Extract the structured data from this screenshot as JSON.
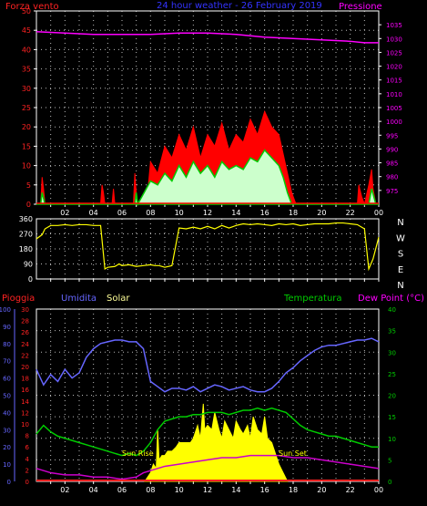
{
  "chart_data": [
    {
      "type": "line",
      "title": "24 hour weather - 26 February 2019",
      "left_axis_label": "Forza vento",
      "right_axis_label": "Pressione",
      "left_range": [
        0,
        50
      ],
      "left_ticks": [
        "0",
        "5",
        "10",
        "15",
        "20",
        "25",
        "30",
        "35",
        "40",
        "45",
        "50"
      ],
      "right_range": [
        970,
        1040
      ],
      "right_ticks": [
        "975",
        "980",
        "985",
        "990",
        "995",
        "1000",
        "1005",
        "1010",
        "1015",
        "1020",
        "1025",
        "1030",
        "1035"
      ],
      "x_range": [
        0,
        24
      ],
      "x_ticks": [
        "02",
        "04",
        "06",
        "08",
        "10",
        "12",
        "14",
        "16",
        "18",
        "20",
        "22",
        "00"
      ],
      "colors": {
        "gust": "#ff0000",
        "wind": "#00cc00",
        "wind_fill": "#ccffcc",
        "pressure": "#ff00ff"
      },
      "series": [
        {
          "key": "gust",
          "x": [
            0,
            0.3,
            0.4,
            0.5,
            0.6,
            4.5,
            4.6,
            4.7,
            4.8,
            5.3,
            5.4,
            5.5,
            6.8,
            6.9,
            7.0,
            7.1,
            7.4,
            7.8,
            8.0,
            8.5,
            9.0,
            9.5,
            10.0,
            10.5,
            11.0,
            11.5,
            12.0,
            12.5,
            13.0,
            13.5,
            14.0,
            14.5,
            15.0,
            15.5,
            16.0,
            16.5,
            17.0,
            17.3,
            17.6,
            17.9,
            18.2,
            22.5,
            22.6,
            22.8,
            23.0,
            23.3,
            23.5,
            23.6,
            23.8,
            24
          ],
          "y": [
            0,
            0,
            7,
            4,
            0,
            0,
            5,
            3,
            0,
            0,
            4,
            0,
            0,
            8,
            3,
            0,
            0,
            3,
            11,
            8,
            15,
            12,
            18,
            14,
            20,
            12,
            18,
            15,
            21,
            14,
            18,
            16,
            22,
            18,
            24,
            20,
            18,
            13,
            8,
            3,
            0,
            0,
            5,
            2,
            0,
            5,
            9,
            4,
            0,
            0
          ]
        },
        {
          "key": "wind",
          "x": [
            0,
            0.3,
            0.4,
            0.6,
            6.9,
            7.0,
            7.1,
            8.0,
            8.5,
            9.0,
            9.5,
            10.0,
            10.5,
            11.0,
            11.5,
            12.0,
            12.5,
            13.0,
            13.5,
            14.0,
            14.5,
            15.0,
            15.5,
            16.0,
            16.5,
            17.0,
            17.3,
            17.6,
            17.9,
            23.3,
            23.5,
            23.8,
            24
          ],
          "y": [
            0,
            0,
            3,
            0,
            0,
            3,
            0,
            6,
            5,
            8,
            6,
            10,
            7,
            11,
            8,
            10,
            7,
            11,
            9,
            10,
            9,
            12,
            11,
            14,
            12,
            10,
            7,
            3,
            0,
            0,
            4,
            0,
            0
          ]
        },
        {
          "key": "pressure",
          "x": [
            0,
            2,
            4,
            6,
            8,
            10,
            12,
            14,
            16,
            18,
            20,
            22,
            23,
            24
          ],
          "y": [
            1032.5,
            1032,
            1031.5,
            1031.5,
            1031.5,
            1032,
            1032,
            1031.5,
            1030.5,
            1030,
            1029.5,
            1029,
            1028.5,
            1028.5
          ]
        }
      ]
    },
    {
      "type": "scatter",
      "left_range": [
        0,
        360
      ],
      "left_ticks": [
        "0",
        "90",
        "180",
        "270",
        "360"
      ],
      "right_labels": [
        "N",
        "W",
        "S",
        "E",
        "N"
      ],
      "colors": {
        "direction": "#ffff00"
      },
      "series": [
        {
          "key": "direction",
          "x": [
            0,
            0.4,
            0.6,
            1.0,
            1.5,
            2.0,
            2.5,
            3.0,
            3.5,
            4.0,
            4.5,
            4.8,
            5.0,
            5.5,
            5.8,
            6.0,
            6.5,
            7.0,
            7.5,
            8.0,
            8.3,
            8.6,
            9.0,
            9.5,
            10.0,
            10.5,
            11.0,
            11.5,
            12.0,
            12.5,
            13.0,
            13.5,
            14.0,
            14.5,
            15.0,
            15.5,
            16.0,
            16.5,
            17.0,
            17.5,
            18.0,
            18.5,
            19.0,
            19.5,
            20.0,
            20.5,
            21.0,
            21.5,
            22.0,
            22.5,
            23.0,
            23.3,
            23.6,
            24
          ],
          "y": [
            240,
            265,
            300,
            320,
            320,
            325,
            320,
            325,
            325,
            320,
            320,
            60,
            70,
            75,
            90,
            80,
            85,
            75,
            80,
            85,
            80,
            80,
            70,
            80,
            305,
            300,
            310,
            300,
            315,
            300,
            320,
            305,
            320,
            330,
            325,
            330,
            325,
            320,
            330,
            325,
            330,
            320,
            325,
            330,
            330,
            330,
            335,
            335,
            330,
            325,
            300,
            60,
            120,
            250
          ]
        }
      ]
    },
    {
      "type": "line",
      "legend": [
        "Pioggia",
        "Umidita",
        "Solar",
        "Temperatura",
        "Dew Point (°C)"
      ],
      "humidity_axis": [
        "0",
        "10",
        "20",
        "30",
        "40",
        "50",
        "60",
        "70",
        "80",
        "90",
        "100"
      ],
      "rain_axis": [
        "0",
        "2",
        "4",
        "6",
        "8",
        "10",
        "12",
        "14",
        "16",
        "18",
        "20",
        "22",
        "24",
        "26",
        "28",
        "30"
      ],
      "temp_axis": [
        "0",
        "5",
        "10",
        "15",
        "20",
        "25",
        "30",
        "35",
        "40"
      ],
      "x_ticks": [
        "02",
        "04",
        "06",
        "08",
        "10",
        "12",
        "14",
        "16",
        "18",
        "20",
        "22",
        "00"
      ],
      "annotations": [
        "Sun Rise",
        "Sun Set"
      ],
      "colors": {
        "rain": "#ff2222",
        "humidity": "#6666ff",
        "solar": "#ffff00",
        "temperature": "#00cc00",
        "dewpoint": "#cc00cc"
      },
      "series": [
        {
          "key": "humidity",
          "x": [
            0,
            0.5,
            1,
            1.5,
            2,
            2.5,
            3,
            3.5,
            4,
            4.5,
            5,
            5.5,
            6,
            6.5,
            7,
            7.5,
            8,
            8.5,
            9,
            9.5,
            10,
            10.5,
            11,
            11.5,
            12,
            12.5,
            13,
            13.5,
            14,
            14.5,
            15,
            15.5,
            16,
            16.5,
            17,
            17.5,
            18,
            18.5,
            19,
            19.5,
            20,
            20.5,
            21,
            21.5,
            22,
            22.5,
            23,
            23.5,
            24
          ],
          "y": [
            65,
            56,
            62,
            58,
            65,
            60,
            63,
            72,
            77,
            80,
            81,
            82,
            82,
            81,
            81,
            77,
            58,
            55,
            52,
            54,
            54,
            53,
            55,
            52,
            54,
            56,
            55,
            53,
            54,
            55,
            53,
            52,
            52,
            54,
            58,
            63,
            66,
            70,
            73,
            76,
            78,
            79,
            79,
            80,
            81,
            82,
            82,
            83,
            81
          ]
        },
        {
          "key": "temperature",
          "x": [
            0,
            0.5,
            1,
            1.5,
            2,
            2.5,
            3,
            3.5,
            4,
            4.5,
            5,
            5.5,
            6,
            6.5,
            7,
            7.5,
            8,
            8.5,
            9,
            9.5,
            10,
            10.5,
            11,
            11.5,
            12,
            12.5,
            13,
            13.5,
            14,
            14.5,
            15,
            15.5,
            16,
            16.5,
            17,
            17.5,
            18,
            18.5,
            19,
            19.5,
            20,
            20.5,
            21,
            21.5,
            22,
            22.5,
            23,
            23.5,
            24
          ],
          "y": [
            11,
            13,
            11.5,
            10.5,
            10,
            9.5,
            9,
            8.5,
            8,
            7.5,
            7,
            6.5,
            6,
            6.5,
            6,
            7,
            9,
            12,
            14,
            14.5,
            15,
            15,
            15.5,
            15.5,
            16,
            16,
            16,
            15.5,
            16,
            16.5,
            16.5,
            17,
            16.5,
            17,
            16.5,
            16,
            14.5,
            13,
            12,
            11.5,
            11,
            10.5,
            10.5,
            10,
            9.5,
            9,
            8.5,
            8,
            8
          ]
        },
        {
          "key": "dewpoint",
          "x": [
            0,
            1,
            2,
            3,
            4,
            5,
            6,
            7,
            7.5,
            8,
            8.5,
            9,
            10,
            11,
            12,
            13,
            14,
            15,
            16,
            17,
            18,
            19,
            20,
            21,
            22,
            23,
            24
          ],
          "y": [
            3,
            2,
            1.5,
            1.5,
            1,
            1,
            0.5,
            1,
            2,
            2.5,
            3,
            3.5,
            4,
            4.5,
            5,
            5.5,
            5.5,
            6,
            6,
            6,
            5.5,
            5.5,
            5,
            4.5,
            4,
            3.5,
            3
          ]
        },
        {
          "key": "solar",
          "x": [
            7.6,
            8.0,
            8.2,
            8.4,
            8.5,
            8.6,
            8.8,
            9.0,
            9.2,
            9.5,
            9.8,
            10.0,
            10.3,
            10.5,
            10.8,
            11.0,
            11.3,
            11.5,
            11.7,
            11.8,
            12.0,
            12.3,
            12.5,
            12.8,
            13.0,
            13.2,
            13.5,
            13.8,
            14.0,
            14.3,
            14.5,
            14.8,
            15.0,
            15.2,
            15.5,
            15.8,
            16.0,
            16.2,
            16.5,
            16.8,
            17.0,
            17.3,
            17.6
          ],
          "y": [
            0,
            2,
            4,
            3,
            12,
            5,
            6,
            6,
            7,
            7,
            8,
            9,
            9,
            9,
            9,
            10,
            13,
            10,
            18,
            12,
            13,
            12,
            16,
            12,
            10,
            14,
            12,
            10,
            14,
            12,
            11,
            13,
            10,
            15,
            12,
            11,
            15,
            10,
            9,
            6,
            4,
            2,
            0
          ]
        }
      ]
    }
  ]
}
